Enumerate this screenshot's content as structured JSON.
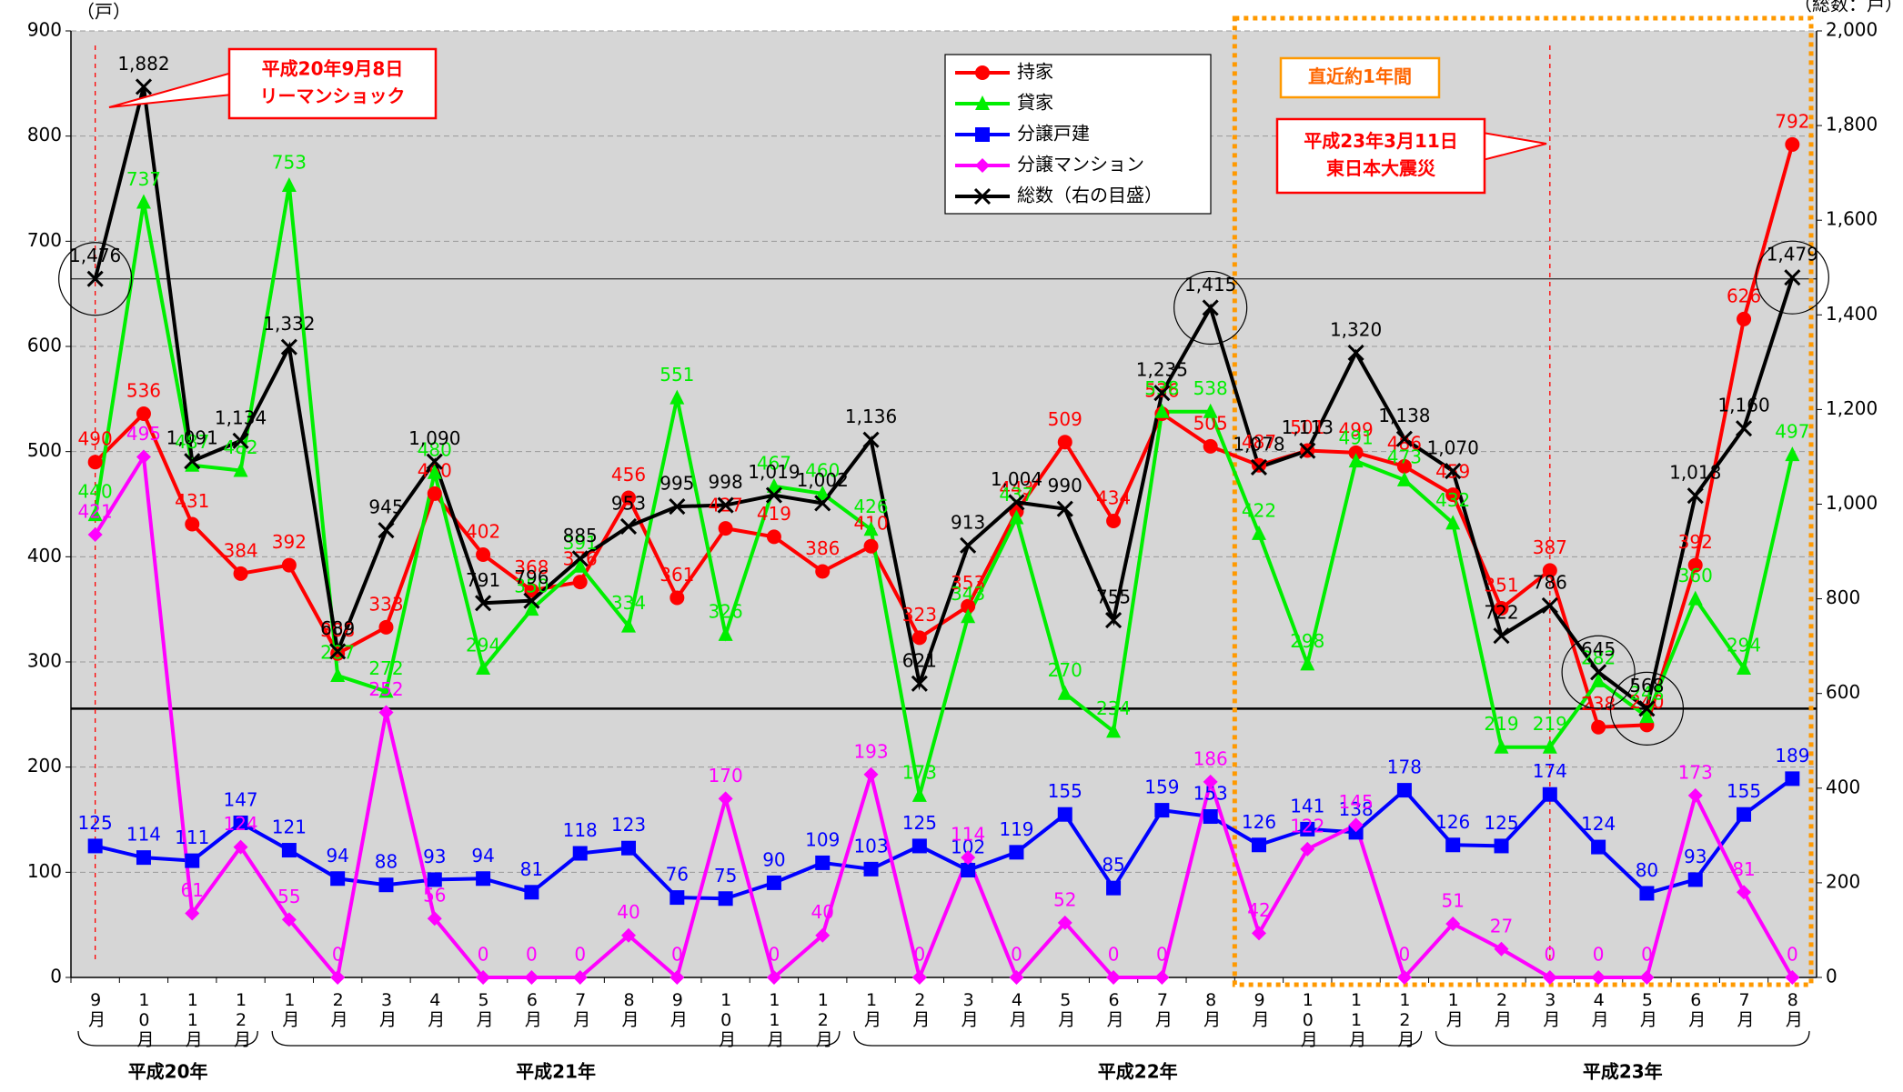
{
  "chart_data": {
    "type": "line",
    "y_unit": "（戸）",
    "y2_unit": "（総数：戸）",
    "categories": [
      "9月",
      "10月",
      "11月",
      "12月",
      "1月",
      "2月",
      "3月",
      "4月",
      "5月",
      "6月",
      "7月",
      "8月",
      "9月",
      "10月",
      "11月",
      "12月",
      "1月",
      "2月",
      "3月",
      "4月",
      "5月",
      "6月",
      "7月",
      "8月",
      "9月",
      "10月",
      "11月",
      "12月",
      "1月",
      "2月",
      "3月",
      "4月",
      "5月",
      "6月",
      "7月",
      "8月"
    ],
    "groups": [
      {
        "label": "平成20年",
        "count": 4
      },
      {
        "label": "平成21年",
        "count": 12
      },
      {
        "label": "平成22年",
        "count": 12
      },
      {
        "label": "平成23年",
        "count": 8
      }
    ],
    "ylim": [
      0,
      900
    ],
    "yticks": [
      0,
      100,
      200,
      300,
      400,
      500,
      600,
      700,
      800,
      900
    ],
    "y2lim": [
      0,
      2000
    ],
    "y2ticks": [
      0,
      200,
      400,
      600,
      800,
      {
        "value": 1000,
        "label": "1,000"
      },
      {
        "value": 1200,
        "label": "1,200"
      },
      {
        "value": 1400,
        "label": "1,400"
      },
      {
        "value": 1600,
        "label": "1,600"
      },
      {
        "value": 1800,
        "label": "1,800"
      },
      {
        "value": 2000,
        "label": "2,000"
      }
    ],
    "grid": true,
    "series": [
      {
        "name": "持家",
        "color": "#ff0000",
        "marker": "circle",
        "values": [
          490,
          536,
          431,
          384,
          392,
          308,
          333,
          460,
          402,
          368,
          376,
          456,
          361,
          427,
          419,
          386,
          410,
          323,
          353,
          443,
          509,
          434,
          536,
          505,
          487,
          501,
          499,
          486,
          459,
          351,
          387,
          238,
          240,
          392,
          626,
          792
        ]
      },
      {
        "name": "貸家",
        "color": "#00ee00",
        "marker": "triangle",
        "values": [
          440,
          737,
          487,
          482,
          753,
          287,
          272,
          480,
          294,
          350,
          391,
          334,
          551,
          326,
          467,
          460,
          426,
          173,
          343,
          437,
          270,
          234,
          538,
          538,
          422,
          298,
          491,
          473,
          432,
          219,
          219,
          282,
          248,
          360,
          294,
          497
        ]
      },
      {
        "name": "分譲戸建",
        "color": "#0000ff",
        "marker": "square",
        "values": [
          125,
          114,
          111,
          147,
          121,
          94,
          88,
          93,
          94,
          81,
          118,
          123,
          76,
          75,
          90,
          109,
          103,
          125,
          102,
          119,
          155,
          85,
          159,
          153,
          126,
          141,
          138,
          178,
          126,
          125,
          174,
          124,
          80,
          93,
          155,
          189
        ]
      },
      {
        "name": "分譲マンション",
        "color": "#ff00ff",
        "marker": "diamond",
        "values": [
          421,
          495,
          61,
          124,
          55,
          0,
          252,
          56,
          0,
          0,
          0,
          40,
          0,
          170,
          0,
          40,
          193,
          0,
          114,
          0,
          52,
          0,
          0,
          186,
          42,
          122,
          145,
          0,
          51,
          27,
          0,
          0,
          0,
          173,
          81,
          0
        ]
      },
      {
        "name": "総数（右の目盛）",
        "color": "#000000",
        "marker": "x",
        "axis": "y2",
        "values": [
          1476,
          1882,
          1091,
          1134,
          1332,
          689,
          945,
          1090,
          791,
          796,
          885,
          953,
          995,
          998,
          1019,
          1002,
          1136,
          621,
          913,
          1004,
          990,
          755,
          1235,
          1415,
          1078,
          1113,
          1320,
          1138,
          1070,
          722,
          786,
          645,
          568,
          1018,
          1160,
          1479
        ],
        "value_labels": [
          "1,476",
          "1,882",
          "1,091",
          "1,134",
          "1,332",
          "689",
          "945",
          "1,090",
          "791",
          "796",
          "885",
          "953",
          "995",
          "998",
          "1,019",
          "1,002",
          "1,136",
          "621",
          "913",
          "1,004",
          "990",
          "755",
          "1,235",
          "1,415",
          "1,078",
          "1,113",
          "1,320",
          "1,138",
          "1,070",
          "722",
          "786",
          "645",
          "568",
          "1,018",
          "1,160",
          "1,479"
        ]
      }
    ],
    "annotations": [
      {
        "lines": [
          "平成20年9月8日",
          "リーマンショック"
        ]
      },
      {
        "lines": [
          "直近約1年間"
        ]
      },
      {
        "lines": [
          "平成23年3月11日",
          "東日本大震災"
        ]
      }
    ]
  }
}
